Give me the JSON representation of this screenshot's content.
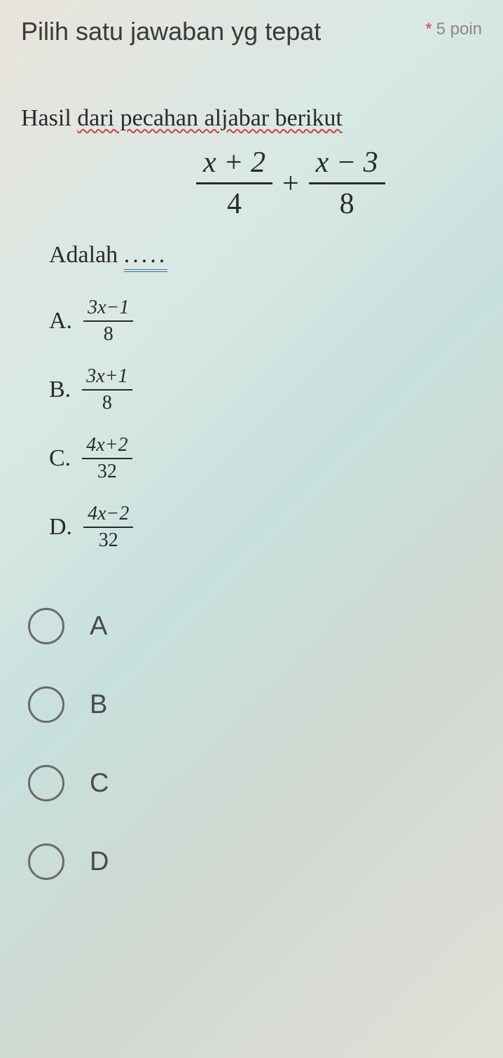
{
  "header": {
    "prompt": "Pilih satu jawaban yg tepat",
    "points_asterisk": "*",
    "points_text": "5 poin"
  },
  "question": {
    "intro_plain": "Hasil ",
    "intro_wavy": "dari pecahan aljabar berikut",
    "formula": {
      "frac1_num": "x + 2",
      "frac1_den": "4",
      "op": "+",
      "frac2_num": "x − 3",
      "frac2_den": "8"
    },
    "adalah_text": "Adalah ",
    "adalah_dots": "....."
  },
  "options": [
    {
      "letter": "A.",
      "num": "3x−1",
      "den": "8"
    },
    {
      "letter": "B.",
      "num": "3x+1",
      "den": "8"
    },
    {
      "letter": "C.",
      "num": "4x+2",
      "den": "32"
    },
    {
      "letter": "D.",
      "num": "4x−2",
      "den": "32"
    }
  ],
  "radios": [
    {
      "label": "A"
    },
    {
      "label": "B"
    },
    {
      "label": "C"
    },
    {
      "label": "D"
    }
  ],
  "colors": {
    "text": "#3a3a3a",
    "asterisk": "#d04040",
    "wavy": "#d04040",
    "double_underline": "#3a7090",
    "radio_border": "#6a6a6a"
  }
}
